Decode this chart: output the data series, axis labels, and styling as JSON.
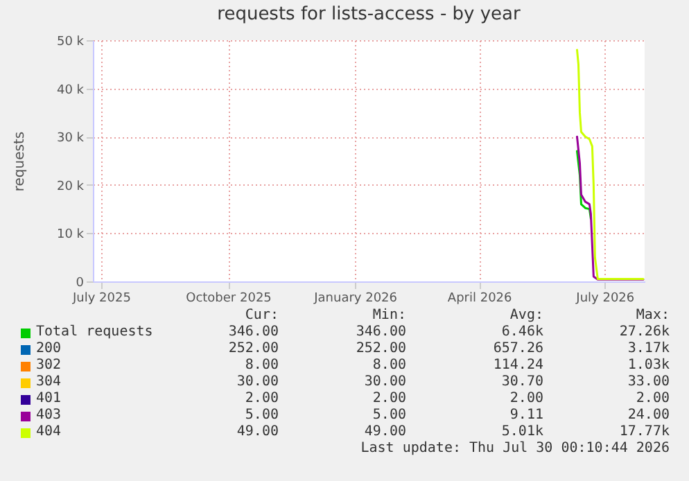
{
  "chart_data": {
    "type": "line",
    "title": "requests for lists-access - by year",
    "ylabel": "requests",
    "xlim": [
      "2025-06-25",
      "2026-07-30"
    ],
    "xticks": [
      {
        "value": "2025-07-01",
        "label": "July 2025"
      },
      {
        "value": "2025-10-01",
        "label": "October 2025"
      },
      {
        "value": "2026-01-01",
        "label": "January 2026"
      },
      {
        "value": "2026-04-01",
        "label": "April 2026"
      },
      {
        "value": "2026-07-01",
        "label": "July 2026"
      }
    ],
    "ylim": [
      0,
      50000
    ],
    "yticks": [
      {
        "value": 0,
        "label": "0"
      },
      {
        "value": 10000,
        "label": "10 k"
      },
      {
        "value": 20000,
        "label": "20 k"
      },
      {
        "value": 30000,
        "label": "30 k"
      },
      {
        "value": 40000,
        "label": "40 k"
      },
      {
        "value": 50000,
        "label": "50 k"
      }
    ],
    "grid": true,
    "legend": "bottom",
    "marker": "none",
    "series": [
      {
        "name": "Total requests",
        "color": "#00cc00",
        "x": [
          "2026-06-11",
          "2026-06-13",
          "2026-06-14",
          "2026-06-17",
          "2026-06-20",
          "2026-06-21"
        ],
        "values": [
          27000,
          22000,
          16000,
          15200,
          15000,
          13000
        ]
      },
      {
        "name": "200",
        "color": "#0066b3"
      },
      {
        "name": "302",
        "color": "#ff8000"
      },
      {
        "name": "304",
        "color": "#ffcc00"
      },
      {
        "name": "401",
        "color": "#330099"
      },
      {
        "name": "403",
        "color": "#990099",
        "x": [
          "2026-06-11",
          "2026-06-13",
          "2026-06-14",
          "2026-06-17",
          "2026-06-20",
          "2026-06-21",
          "2026-06-23",
          "2026-06-26",
          "2026-07-29"
        ],
        "values": [
          30000,
          24500,
          18000,
          16500,
          16000,
          14000,
          1000,
          400,
          400
        ]
      },
      {
        "name": "404",
        "color": "#ccff00",
        "x": [
          "2026-06-11",
          "2026-06-12",
          "2026-06-13",
          "2026-06-14",
          "2026-06-17",
          "2026-06-20",
          "2026-06-22",
          "2026-06-23",
          "2026-06-24",
          "2026-06-26",
          "2026-07-29"
        ],
        "values": [
          48000,
          45000,
          35000,
          31000,
          30000,
          29500,
          28000,
          20000,
          5000,
          500,
          500
        ]
      }
    ],
    "annotations": [
      "Cur:",
      "Min:",
      "Avg:",
      "Max:",
      "346.00",
      "346.00",
      "6.46k",
      "27.26k",
      "252.00",
      "252.00",
      "657.26",
      "3.17k",
      "8.00",
      "8.00",
      "114.24",
      "1.03k",
      "30.00",
      "30.00",
      "30.70",
      "33.00",
      "2.00",
      "2.00",
      "2.00",
      "2.00",
      "5.00",
      "5.00",
      "9.11",
      "24.00",
      "49.00",
      "49.00",
      "5.01k",
      "17.77k",
      "Last update: Thu Jul 30 00:10:44 2026"
    ]
  }
}
